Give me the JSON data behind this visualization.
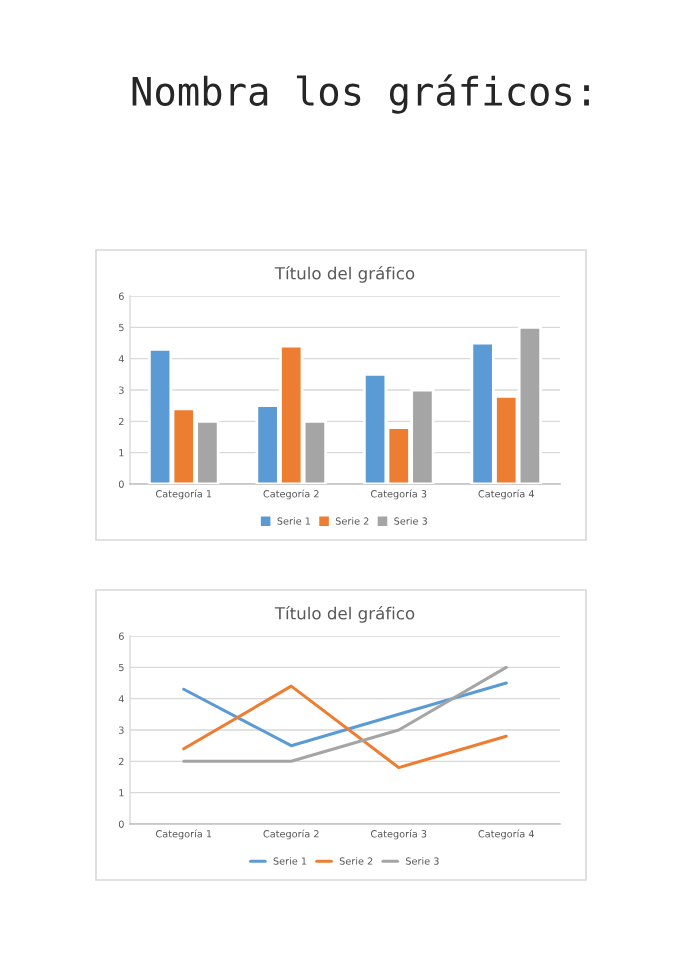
{
  "chart_data": [
    {
      "type": "bar",
      "title": "Título del gráfico",
      "annotations": [
        "Nombra los gráficos:"
      ],
      "categories": [
        "Categoría 1",
        "Categoría 2",
        "Categoría 3",
        "Categoría 4"
      ],
      "series": [
        {
          "name": "Serie 1",
          "color": "#5b9bd5",
          "values": [
            4.3,
            2.5,
            3.5,
            4.5
          ]
        },
        {
          "name": "Serie 2",
          "color": "#ed7d31",
          "values": [
            2.4,
            4.4,
            1.8,
            2.8
          ]
        },
        {
          "name": "Serie 3",
          "color": "#a5a5a5",
          "values": [
            2,
            2,
            3,
            5
          ]
        }
      ],
      "ylim": [
        0,
        6
      ],
      "yticks": [
        0,
        1,
        2,
        3,
        4,
        5,
        6
      ],
      "grid": "y",
      "legend": "bottom"
    },
    {
      "type": "line",
      "title": "Título del gráfico",
      "categories": [
        "Categoría 1",
        "Categoría 2",
        "Categoría 3",
        "Categoría 4"
      ],
      "series": [
        {
          "name": "Serie 1",
          "color": "#5b9bd5",
          "values": [
            4.3,
            2.5,
            3.5,
            4.5
          ]
        },
        {
          "name": "Serie 2",
          "color": "#ed7d31",
          "values": [
            2.4,
            4.4,
            1.8,
            2.8
          ]
        },
        {
          "name": "Serie 3",
          "color": "#a5a5a5",
          "values": [
            2,
            2,
            3,
            5
          ]
        }
      ],
      "ylim": [
        0,
        6
      ],
      "yticks": [
        0,
        1,
        2,
        3,
        4,
        5,
        6
      ],
      "grid": "y",
      "legend": "bottom",
      "marker": "none",
      "line_style": "solid"
    }
  ]
}
